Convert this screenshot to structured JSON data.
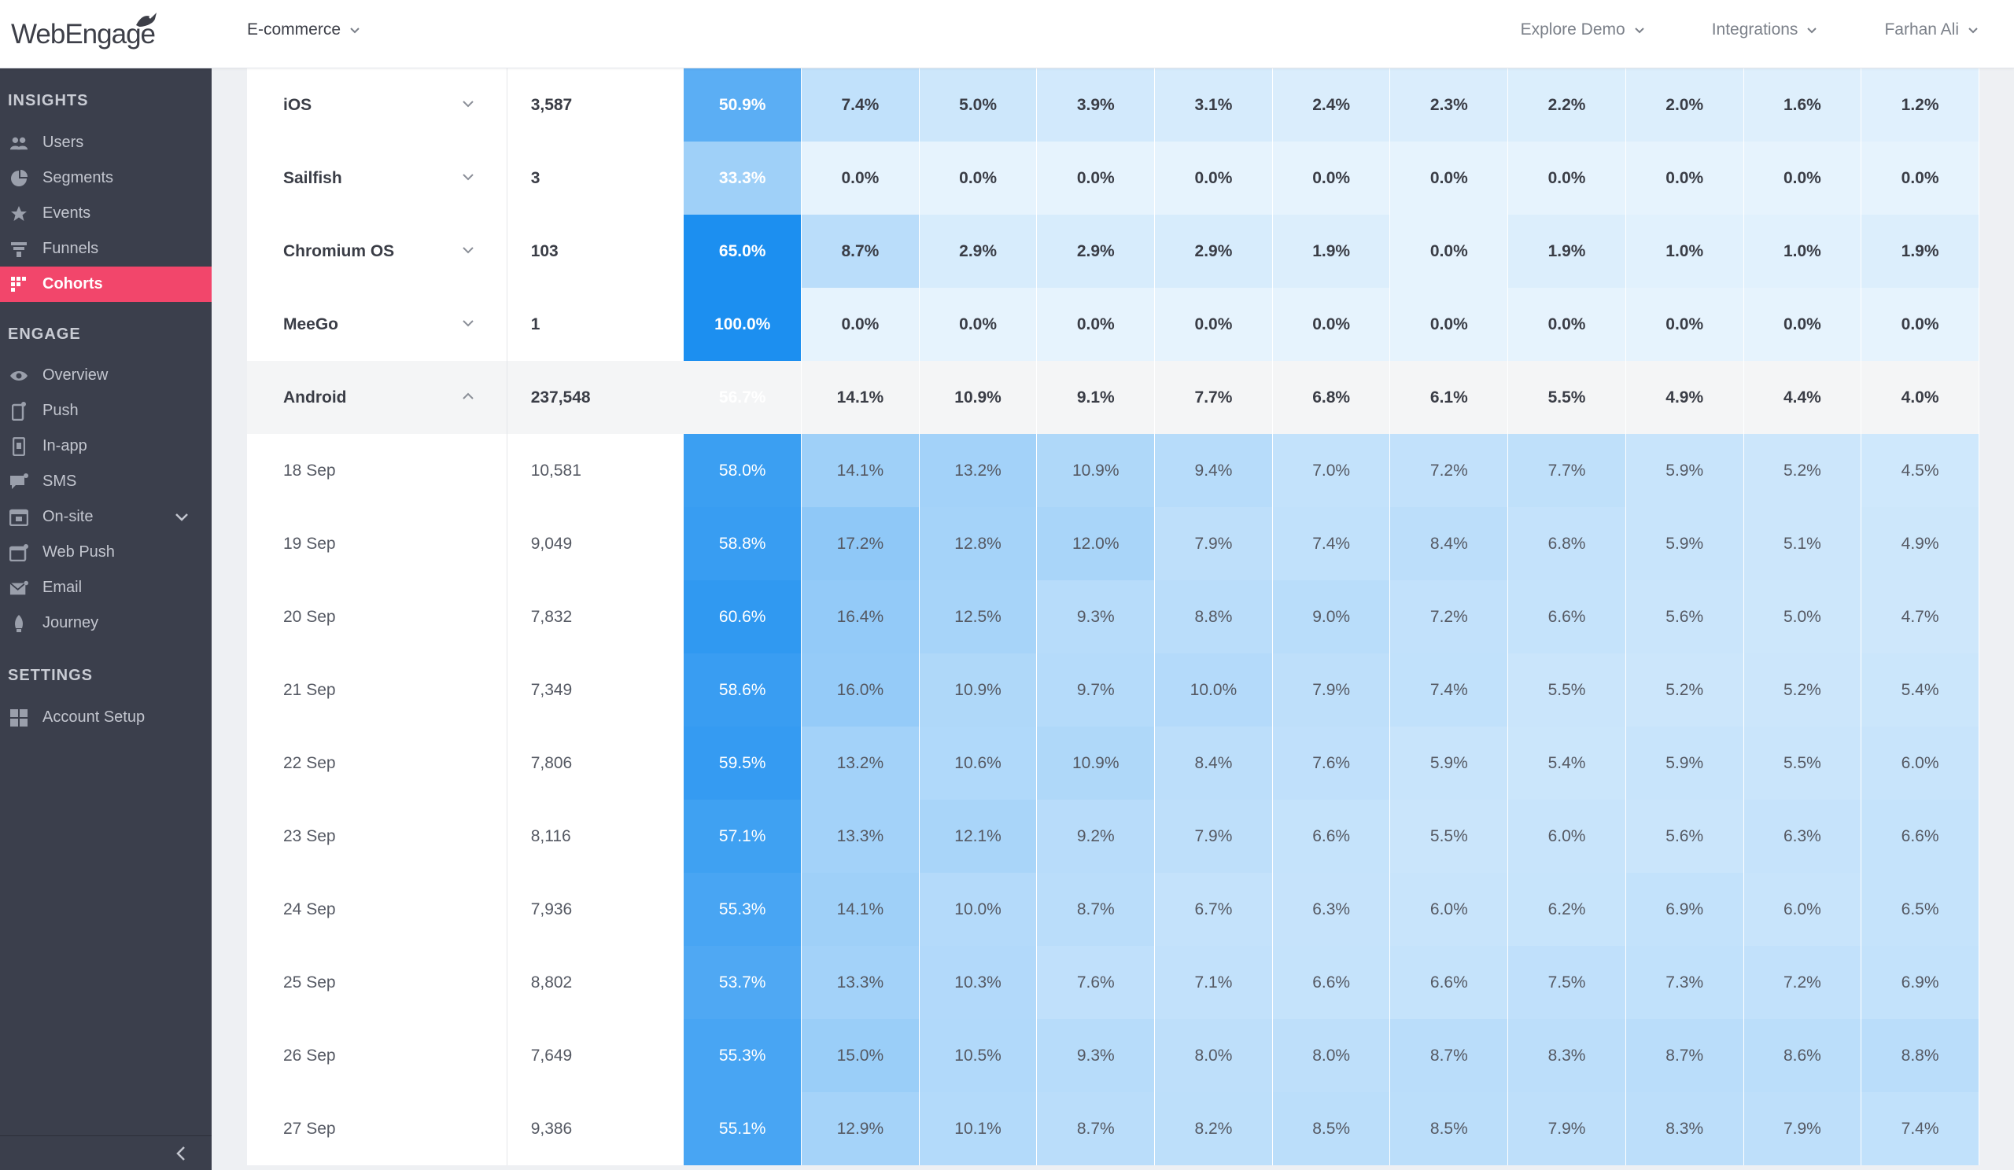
{
  "brand": {
    "logo_text": "WebEngage"
  },
  "header": {
    "project": "E-commerce",
    "nav": [
      "Explore Demo",
      "Integrations",
      "Farhan Ali"
    ]
  },
  "sidebar": {
    "insights_title": "INSIGHTS",
    "insights": [
      {
        "label": "Users",
        "icon": "users-icon"
      },
      {
        "label": "Segments",
        "icon": "segments-icon"
      },
      {
        "label": "Events",
        "icon": "events-icon"
      },
      {
        "label": "Funnels",
        "icon": "funnels-icon"
      },
      {
        "label": "Cohorts",
        "icon": "cohorts-icon",
        "active": true
      }
    ],
    "engage_title": "ENGAGE",
    "engage": [
      {
        "label": "Overview",
        "icon": "eye-icon"
      },
      {
        "label": "Push",
        "icon": "push-icon"
      },
      {
        "label": "In-app",
        "icon": "inapp-icon"
      },
      {
        "label": "SMS",
        "icon": "sms-icon"
      },
      {
        "label": "On-site",
        "icon": "onsite-icon",
        "expandable": true
      },
      {
        "label": "Web Push",
        "icon": "webpush-icon"
      },
      {
        "label": "Email",
        "icon": "email-icon"
      },
      {
        "label": "Journey",
        "icon": "journey-icon"
      }
    ],
    "settings_title": "SETTINGS",
    "settings": [
      {
        "label": "Account Setup",
        "icon": "account-setup-icon"
      }
    ]
  },
  "colors": {
    "accent": "#f2466b",
    "sidebar_bg": "#3b3f4c",
    "heat_max": "#1c8ff0",
    "heat_min": "#e6f3fd"
  },
  "cohort_table": {
    "rows": [
      {
        "name": "iOS",
        "type": "group",
        "count": "3,587",
        "cells": [
          "50.9%",
          "7.4%",
          "5.0%",
          "3.9%",
          "3.1%",
          "2.4%",
          "2.3%",
          "2.2%",
          "2.0%",
          "1.6%",
          "1.2%"
        ]
      },
      {
        "name": "Sailfish",
        "type": "group",
        "count": "3",
        "cells": [
          "33.3%",
          "0.0%",
          "0.0%",
          "0.0%",
          "0.0%",
          "0.0%",
          "0.0%",
          "0.0%",
          "0.0%",
          "0.0%",
          "0.0%"
        ]
      },
      {
        "name": "Chromium OS",
        "type": "group",
        "count": "103",
        "cells": [
          "65.0%",
          "8.7%",
          "2.9%",
          "2.9%",
          "2.9%",
          "1.9%",
          "0.0%",
          "1.9%",
          "1.0%",
          "1.0%",
          "1.9%"
        ]
      },
      {
        "name": "MeeGo",
        "type": "group",
        "count": "1",
        "cells": [
          "100.0%",
          "0.0%",
          "0.0%",
          "0.0%",
          "0.0%",
          "0.0%",
          "0.0%",
          "0.0%",
          "0.0%",
          "0.0%",
          "0.0%"
        ]
      },
      {
        "name": "Android",
        "type": "parent",
        "count": "237,548",
        "cells": [
          "56.7%",
          "14.1%",
          "10.9%",
          "9.1%",
          "7.7%",
          "6.8%",
          "6.1%",
          "5.5%",
          "4.9%",
          "4.4%",
          "4.0%"
        ]
      },
      {
        "name": "18 Sep",
        "type": "child",
        "count": "10,581",
        "cells": [
          "58.0%",
          "14.1%",
          "13.2%",
          "10.9%",
          "9.4%",
          "7.0%",
          "7.2%",
          "7.7%",
          "5.9%",
          "5.2%",
          "4.5%"
        ]
      },
      {
        "name": "19 Sep",
        "type": "child",
        "count": "9,049",
        "cells": [
          "58.8%",
          "17.2%",
          "12.8%",
          "12.0%",
          "7.9%",
          "7.4%",
          "8.4%",
          "6.8%",
          "5.9%",
          "5.1%",
          "4.9%"
        ]
      },
      {
        "name": "20 Sep",
        "type": "child",
        "count": "7,832",
        "cells": [
          "60.6%",
          "16.4%",
          "12.5%",
          "9.3%",
          "8.8%",
          "9.0%",
          "7.2%",
          "6.6%",
          "5.6%",
          "5.0%",
          "4.7%"
        ]
      },
      {
        "name": "21 Sep",
        "type": "child",
        "count": "7,349",
        "cells": [
          "58.6%",
          "16.0%",
          "10.9%",
          "9.7%",
          "10.0%",
          "7.9%",
          "7.4%",
          "5.5%",
          "5.2%",
          "5.2%",
          "5.4%"
        ]
      },
      {
        "name": "22 Sep",
        "type": "child",
        "count": "7,806",
        "cells": [
          "59.5%",
          "13.2%",
          "10.6%",
          "10.9%",
          "8.4%",
          "7.6%",
          "5.9%",
          "5.4%",
          "5.9%",
          "5.5%",
          "6.0%"
        ]
      },
      {
        "name": "23 Sep",
        "type": "child",
        "count": "8,116",
        "cells": [
          "57.1%",
          "13.3%",
          "12.1%",
          "9.2%",
          "7.9%",
          "6.6%",
          "5.5%",
          "6.0%",
          "5.6%",
          "6.3%",
          "6.6%"
        ]
      },
      {
        "name": "24 Sep",
        "type": "child",
        "count": "7,936",
        "cells": [
          "55.3%",
          "14.1%",
          "10.0%",
          "8.7%",
          "6.7%",
          "6.3%",
          "6.0%",
          "6.2%",
          "6.9%",
          "6.0%",
          "6.5%"
        ]
      },
      {
        "name": "25 Sep",
        "type": "child",
        "count": "8,802",
        "cells": [
          "53.7%",
          "13.3%",
          "10.3%",
          "7.6%",
          "7.1%",
          "6.6%",
          "6.6%",
          "7.5%",
          "7.3%",
          "7.2%",
          "6.9%"
        ]
      },
      {
        "name": "26 Sep",
        "type": "child",
        "count": "7,649",
        "cells": [
          "55.3%",
          "15.0%",
          "10.5%",
          "9.3%",
          "8.0%",
          "8.0%",
          "8.7%",
          "8.3%",
          "8.7%",
          "8.6%",
          "8.8%"
        ]
      },
      {
        "name": "27 Sep",
        "type": "child",
        "count": "9,386",
        "cells": [
          "55.1%",
          "12.9%",
          "10.1%",
          "8.7%",
          "8.2%",
          "8.5%",
          "8.5%",
          "7.9%",
          "8.3%",
          "7.9%",
          "7.4%"
        ]
      }
    ]
  }
}
